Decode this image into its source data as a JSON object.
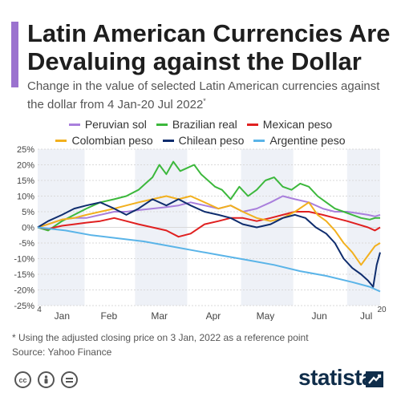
{
  "title": "Latin American Currencies Are Devaluing against the Dollar",
  "subtitle": "Change in the value of selected Latin American currencies against the dollar from 4 Jan-20 Jul 2022",
  "subtitle_mark": "*",
  "footnote": "* Using the adjusted closing price on 3 Jan, 2022 as a reference point",
  "source": "Source: Yahoo Finance",
  "brand": "statista",
  "license_icons": [
    "cc-icon",
    "person-icon",
    "equals-icon"
  ],
  "colors": {
    "accent": "#9b72cf",
    "band": "#eef1f7",
    "grid": "#d9d9d9"
  },
  "chart_data": {
    "type": "line",
    "x_unit": "day of 2022",
    "xlim": [
      4,
      201
    ],
    "ylim": [
      -25,
      25
    ],
    "y_ticks": [
      "25%",
      "20%",
      "15%",
      "10%",
      "5%",
      "0%",
      "-5%",
      "-10%",
      "-15%",
      "-20%",
      "-25%"
    ],
    "y_tick_values": [
      25,
      20,
      15,
      10,
      5,
      0,
      -5,
      -10,
      -15,
      -20,
      -25
    ],
    "month_labels": [
      "Jan",
      "Feb",
      "Mar",
      "Apr",
      "May",
      "Jun",
      "Jul"
    ],
    "month_label_x": [
      18,
      45,
      74,
      105,
      135,
      166,
      193
    ],
    "month_bands": [
      [
        4,
        31
      ],
      [
        60,
        90
      ],
      [
        121,
        151
      ],
      [
        182,
        201
      ]
    ],
    "x_start_label": "4",
    "x_end_label": "20",
    "grid": true,
    "legend_position": "top",
    "series": [
      {
        "name": "Peruvian sol",
        "color": "#a97fdc",
        "x": [
          4,
          10,
          18,
          25,
          32,
          40,
          48,
          55,
          62,
          70,
          78,
          85,
          92,
          100,
          108,
          115,
          122,
          130,
          138,
          145,
          152,
          160,
          168,
          175,
          182,
          188,
          194,
          198,
          201
        ],
        "y": [
          0,
          1,
          2.5,
          3,
          3,
          4,
          5,
          5,
          5.5,
          6,
          6.5,
          7,
          8,
          7,
          6,
          7,
          5,
          6,
          8,
          10,
          9,
          8,
          6,
          5,
          5,
          4.5,
          4,
          3.5,
          4
        ]
      },
      {
        "name": "Brazilian real",
        "color": "#3cb83c",
        "x": [
          4,
          10,
          18,
          25,
          32,
          40,
          48,
          55,
          62,
          66,
          70,
          74,
          78,
          82,
          86,
          90,
          94,
          98,
          102,
          106,
          110,
          115,
          120,
          125,
          130,
          135,
          140,
          145,
          150,
          155,
          160,
          165,
          170,
          175,
          180,
          185,
          190,
          195,
          198,
          201
        ],
        "y": [
          0,
          -1,
          2,
          4,
          6,
          8,
          9,
          10,
          12,
          14,
          16,
          20,
          17,
          21,
          18,
          19,
          20,
          17,
          15,
          13,
          12,
          9,
          13,
          10,
          12,
          15,
          16,
          13,
          12,
          14,
          13,
          10,
          8,
          6,
          5,
          4,
          3,
          2.5,
          3,
          3
        ]
      },
      {
        "name": "Mexican peso",
        "color": "#e02020",
        "x": [
          4,
          10,
          18,
          25,
          32,
          40,
          48,
          55,
          62,
          70,
          78,
          85,
          92,
          100,
          108,
          115,
          122,
          130,
          138,
          145,
          152,
          160,
          168,
          175,
          182,
          188,
          194,
          198,
          201
        ],
        "y": [
          0,
          -0.5,
          0.5,
          1,
          1.5,
          2,
          3,
          2,
          1,
          0,
          -1,
          -3,
          -2,
          1,
          2,
          3,
          3,
          2,
          3,
          4,
          5,
          5,
          4,
          3,
          2,
          1,
          0,
          -1,
          0
        ]
      },
      {
        "name": "Colombian peso",
        "color": "#f2b01e",
        "x": [
          4,
          10,
          18,
          25,
          32,
          40,
          48,
          55,
          62,
          70,
          78,
          85,
          92,
          100,
          108,
          115,
          122,
          130,
          138,
          145,
          152,
          160,
          165,
          170,
          175,
          180,
          185,
          190,
          194,
          198,
          201
        ],
        "y": [
          0,
          1,
          2.5,
          3,
          4,
          5,
          6,
          7,
          8,
          9,
          10,
          9,
          10,
          8,
          6,
          7,
          5,
          3,
          2,
          3,
          5,
          8,
          4,
          2,
          -1,
          -5,
          -8,
          -12,
          -9,
          -6,
          -5
        ]
      },
      {
        "name": "Chilean peso",
        "color": "#0f2d6e",
        "x": [
          4,
          10,
          18,
          25,
          32,
          40,
          48,
          55,
          62,
          70,
          78,
          85,
          92,
          100,
          108,
          115,
          122,
          130,
          138,
          145,
          152,
          158,
          164,
          170,
          175,
          180,
          185,
          190,
          194,
          197,
          199,
          201
        ],
        "y": [
          0,
          2,
          4,
          6,
          7,
          8,
          6,
          4,
          6,
          9,
          7,
          9,
          7,
          5,
          4,
          3,
          1,
          0,
          1,
          3,
          4,
          3,
          0,
          -2,
          -5,
          -10,
          -13,
          -15,
          -17,
          -19,
          -12,
          -8
        ]
      },
      {
        "name": "Argentine peso",
        "color": "#5ab4e8",
        "x": [
          4,
          20,
          35,
          50,
          65,
          80,
          95,
          110,
          125,
          140,
          155,
          170,
          185,
          195,
          201
        ],
        "y": [
          0,
          -1,
          -2.5,
          -3.5,
          -4.5,
          -6,
          -7.5,
          -9,
          -10.5,
          -12,
          -14,
          -15.5,
          -17.5,
          -19,
          -20.5
        ]
      }
    ]
  }
}
